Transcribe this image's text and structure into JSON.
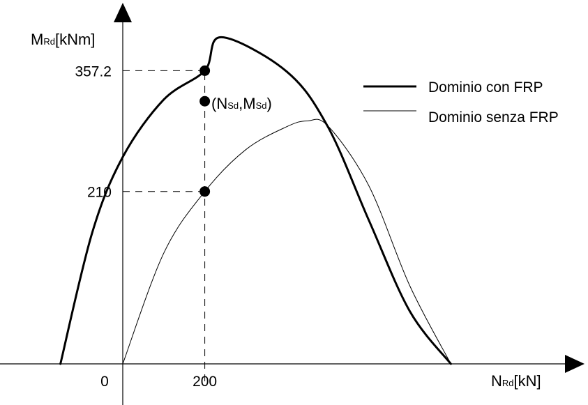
{
  "chart_data": {
    "type": "line",
    "title": "",
    "xlabel": {
      "main": "N",
      "sub": "Rd",
      "unit": "[kN]"
    },
    "ylabel": {
      "main": "M",
      "sub": "Rd",
      "unit": "[kNm]"
    },
    "x_ticks": [
      {
        "value": 0,
        "label": "0"
      },
      {
        "value": 200,
        "label": "200"
      }
    ],
    "y_ticks": [
      {
        "value": 210,
        "label": "210"
      },
      {
        "value": 357.2,
        "label": "357.2"
      }
    ],
    "xlim": [
      -300,
      1150
    ],
    "ylim": [
      -50,
      465
    ],
    "grid": false,
    "legend_position": "top-right",
    "series": [
      {
        "name": "Dominio con FRP",
        "style": "thick",
        "points": [
          [
            -152,
            0
          ],
          [
            -75,
            159
          ],
          [
            0,
            252
          ],
          [
            100,
            322
          ],
          [
            200,
            357.2
          ],
          [
            240,
            398
          ],
          [
            400,
            356
          ],
          [
            500,
            289
          ],
          [
            600,
            175
          ],
          [
            700,
            64
          ],
          [
            800,
            0
          ]
        ]
      },
      {
        "name": "Dominio senza FRP",
        "style": "thin",
        "points": [
          [
            0,
            0
          ],
          [
            100,
            135
          ],
          [
            200,
            210
          ],
          [
            300,
            261
          ],
          [
            400,
            289
          ],
          [
            450,
            296
          ],
          [
            500,
            290
          ],
          [
            600,
            217
          ],
          [
            700,
            95
          ],
          [
            800,
            0
          ]
        ]
      }
    ],
    "annotations": [
      {
        "label_main": [
          "N",
          "M"
        ],
        "label_sub": [
          "Sd",
          "Sd"
        ],
        "x": 200,
        "y": 320
      }
    ],
    "markers": [
      {
        "x": 200,
        "y": 357.2
      },
      {
        "x": 200,
        "y": 320
      },
      {
        "x": 200,
        "y": 210
      }
    ],
    "guides": [
      {
        "from": "y-axis",
        "to_point": [
          200,
          357.2
        ]
      },
      {
        "from": "y-axis",
        "to_point": [
          200,
          210
        ]
      },
      {
        "from": "x-axis",
        "to_point": [
          200,
          357.2
        ]
      }
    ]
  },
  "colors": {
    "line": "#000000",
    "background": "#ffffff"
  }
}
